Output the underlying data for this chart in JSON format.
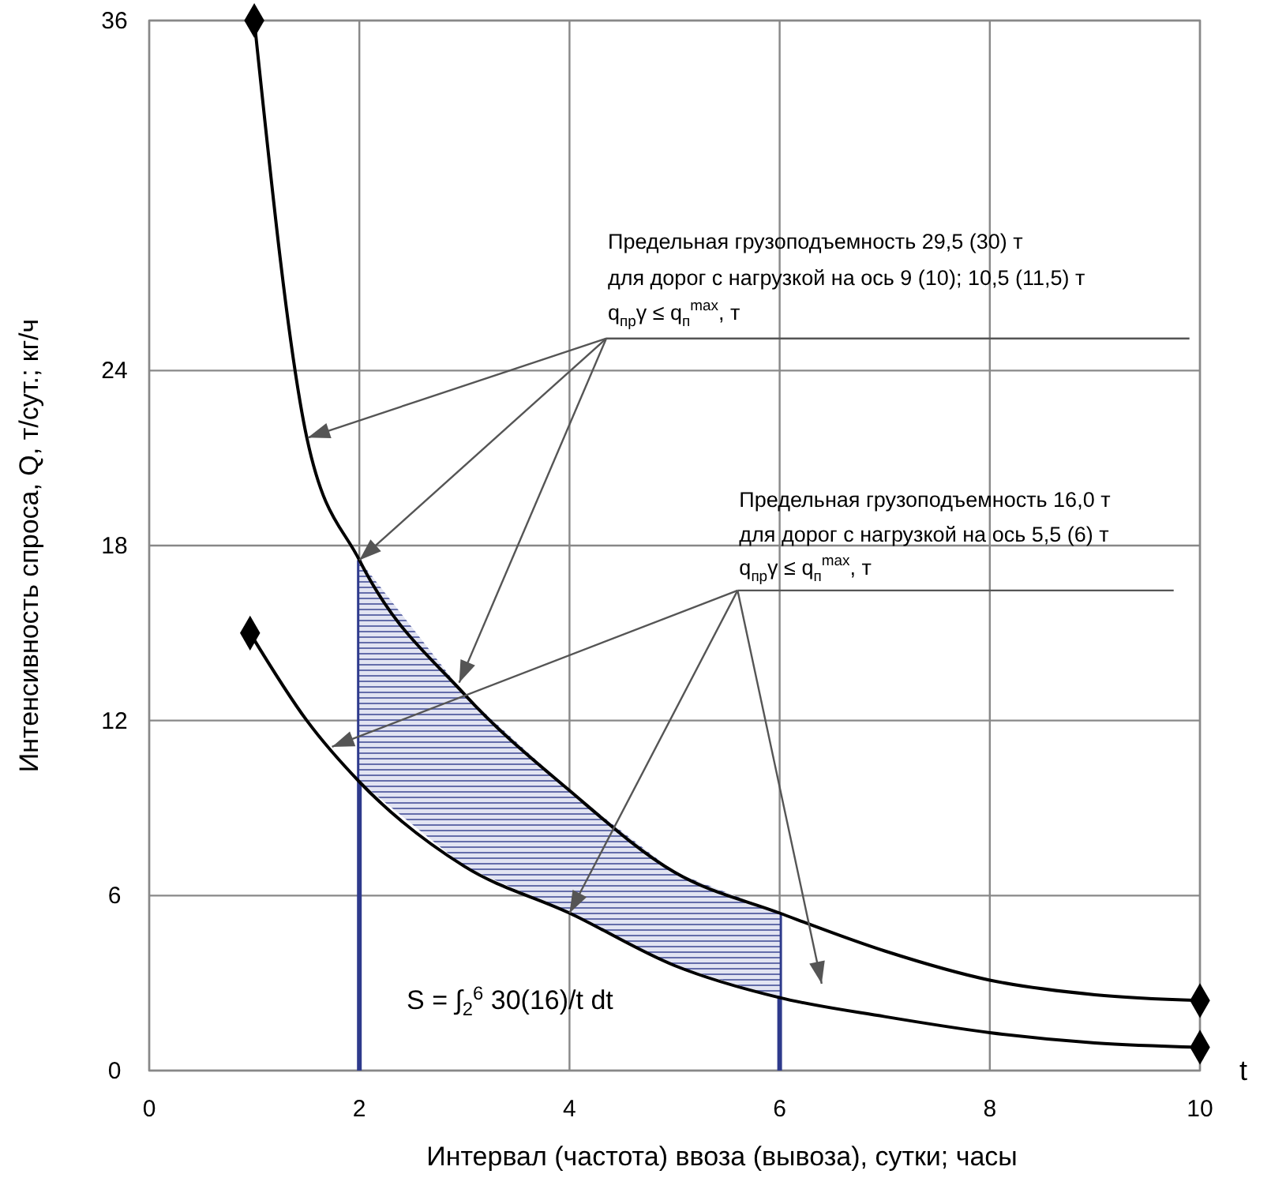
{
  "chart_data": {
    "type": "line",
    "xlabel": "Интервал (частота) ввоза (вывоза), сутки; часы",
    "ylabel": "Интенсивность спроса, Q, т/сут.; кг/ч",
    "xlim": [
      0,
      10
    ],
    "xticks": [
      0,
      2,
      4,
      6,
      8,
      10
    ],
    "ylim": [
      0,
      36
    ],
    "yticks": [
      0,
      6,
      12,
      18,
      24,
      36
    ],
    "grid": true,
    "line_style": "solid",
    "series": [
      {
        "color": "#000000",
        "x": [
          1,
          1.5,
          2,
          3,
          4,
          5,
          6,
          7,
          8,
          9,
          10
        ],
        "values": [
          36,
          21.7,
          17.5,
          12.9,
          9.6,
          6.8,
          5.4,
          4.1,
          3.1,
          2.6,
          2.4
        ]
      },
      {
        "color": "#000000",
        "x": [
          0.96,
          1.5,
          2,
          3,
          4,
          5,
          6,
          7,
          8,
          9,
          10
        ],
        "values": [
          15,
          12,
          9.9,
          7,
          5.4,
          3.6,
          2.5,
          1.85,
          1.3,
          0.95,
          0.8
        ]
      },
      {
        "type": "scatter",
        "color": "#000000",
        "marker": "diamond",
        "x": [
          1,
          10,
          0.96,
          10
        ],
        "values": [
          36,
          2.4,
          15,
          0.8
        ]
      }
    ],
    "ref_lines": [
      {
        "axis": "x",
        "value": 2,
        "color": "#2e3a8c"
      },
      {
        "axis": "x",
        "value": 6,
        "color": "#2e3a8c"
      }
    ],
    "annotations": [
      {
        "text": "Предельная грузоподъемность 29,5 (30) т\nдля дорог с нагрузкой на ось 9 (10); 10,5 (11,5) т\nq$_{пр}$γ ≤ q$_{п}$$^{max}$, т",
        "x": 2,
        "y": 17.5
      },
      {
        "text": "Предельная грузоподъемность 16,0 т\nдля дорог с нагрузкой на ось 5,5 (6) т\nq$_{пр}$γ ≤ q$_{п}$$^{max}$, т",
        "x": 4,
        "y": 5.4
      },
      "S = ∫$_{2}$$^{6}$ 30(16)/t dt",
      "t"
    ]
  }
}
